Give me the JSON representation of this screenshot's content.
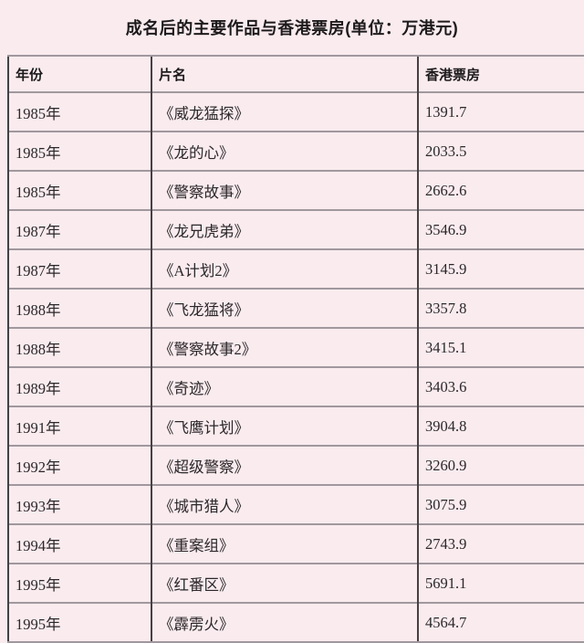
{
  "chart_data": {
    "type": "table",
    "title": "成名后的主要作品与香港票房(单位：万港元)",
    "columns": [
      "年份",
      "片名",
      "香港票房"
    ],
    "rows": [
      [
        "1985年",
        "《威龙猛探》",
        "1391.7"
      ],
      [
        "1985年",
        "《龙的心》",
        "2033.5"
      ],
      [
        "1985年",
        "《警察故事》",
        "2662.6"
      ],
      [
        "1987年",
        "《龙兄虎弟》",
        "3546.9"
      ],
      [
        "1987年",
        "《A计划2》",
        "3145.9"
      ],
      [
        "1988年",
        "《飞龙猛将》",
        "3357.8"
      ],
      [
        "1988年",
        "《警察故事2》",
        "3415.1"
      ],
      [
        "1989年",
        "《奇迹》",
        "3403.6"
      ],
      [
        "1991年",
        "《飞鹰计划》",
        "3904.8"
      ],
      [
        "1992年",
        "《超级警察》",
        "3260.9"
      ],
      [
        "1993年",
        "《城市猎人》",
        "3075.9"
      ],
      [
        "1994年",
        "《重案组》",
        "2743.9"
      ],
      [
        "1995年",
        "《红番区》",
        "5691.1"
      ],
      [
        "1995年",
        "《霹雳火》",
        "4564.7"
      ]
    ]
  },
  "colors": {
    "background": "#f9ebee",
    "text": "#2b272a",
    "title_text": "#1d1a1c",
    "grid_horizontal": "#a0989e",
    "grid_vertical": "#464043"
  }
}
